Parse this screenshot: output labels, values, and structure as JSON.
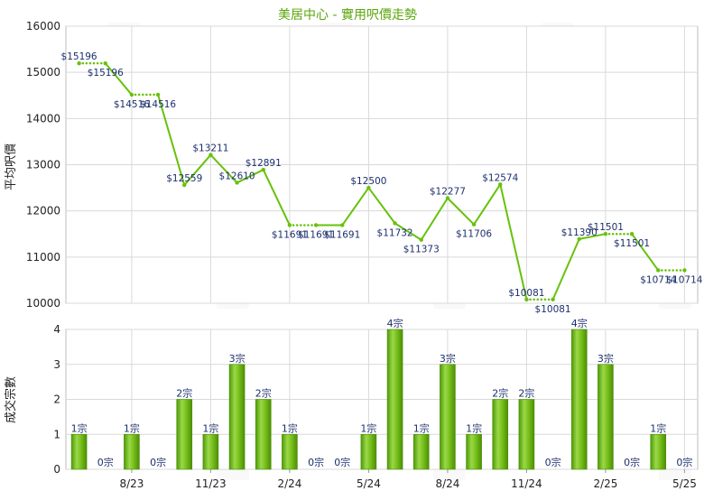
{
  "chart_data": [
    {
      "type": "line",
      "title": "美居中心 - 實用呎價走勢",
      "ylabel": "平均呎價",
      "xlabel": "",
      "ylim": [
        10000,
        16000
      ],
      "yticks": [
        "16000",
        "15000",
        "14000",
        "13000",
        "12000",
        "11000",
        "10000"
      ],
      "x_tick_labels": [
        "8/23",
        "11/23",
        "2/24",
        "5/24",
        "8/24",
        "11/24",
        "2/25",
        "5/25"
      ],
      "grid": true,
      "line_color": "#66c20a",
      "series": [
        {
          "values": [
            15196,
            15196,
            14516,
            14516,
            12559,
            13211,
            12610,
            12891,
            11691,
            11691,
            11691,
            12500,
            11732,
            11373,
            12277,
            11706,
            12574,
            10081,
            10081,
            11390,
            11501,
            11501,
            10714,
            10714
          ],
          "labels": [
            "$15196",
            "$15196",
            "$14516",
            "$14516",
            "$12559",
            "$13211",
            "$12610",
            "$12891",
            "$11691",
            "$11691",
            "$11691",
            "$12500",
            "$11732",
            "$11373",
            "$12277",
            "$11706",
            "$12574",
            "$10081",
            "$10081",
            "$11390",
            "$11501",
            "$11501",
            "$10714",
            "$10714"
          ],
          "carried_forward": [
            false,
            true,
            false,
            true,
            false,
            false,
            false,
            false,
            false,
            true,
            false,
            false,
            false,
            false,
            false,
            false,
            false,
            false,
            true,
            false,
            false,
            true,
            false,
            true
          ]
        }
      ]
    },
    {
      "type": "bar",
      "ylabel": "成交宗數",
      "xlabel": "",
      "ylim": [
        0,
        4
      ],
      "yticks": [
        "4",
        "3",
        "2",
        "1",
        "0"
      ],
      "x_tick_labels": [
        "8/23",
        "11/23",
        "2/24",
        "5/24",
        "8/24",
        "11/24",
        "2/25",
        "5/25"
      ],
      "grid": true,
      "bar_color": "#7cc21e",
      "series": [
        {
          "values": [
            1,
            0,
            1,
            0,
            2,
            1,
            3,
            2,
            1,
            0,
            0,
            1,
            4,
            1,
            3,
            1,
            2,
            2,
            0,
            4,
            3,
            0,
            1,
            0
          ],
          "labels": [
            "1宗",
            "0宗",
            "1宗",
            "0宗",
            "2宗",
            "1宗",
            "3宗",
            "2宗",
            "1宗",
            "0宗",
            "0宗",
            "1宗",
            "4宗",
            "1宗",
            "3宗",
            "1宗",
            "2宗",
            "2宗",
            "0宗",
            "4宗",
            "3宗",
            "0宗",
            "1宗",
            "0宗"
          ]
        }
      ]
    }
  ]
}
